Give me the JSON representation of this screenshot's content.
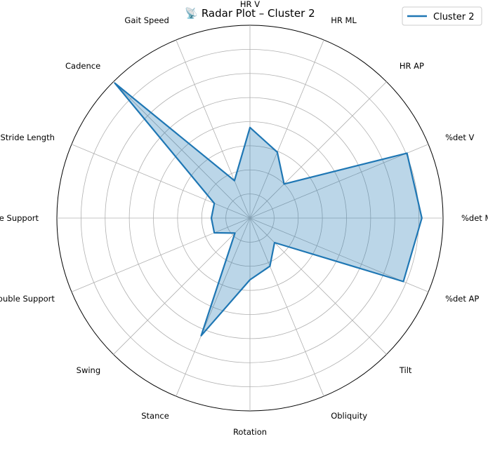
{
  "chart_data": {
    "type": "radar",
    "title": "📡 Radar Plot – Cluster 2",
    "legend": {
      "position": "top-right",
      "entries": [
        "Cluster 2"
      ]
    },
    "grid": true,
    "rlim": [
      0,
      1
    ],
    "rgrid_levels": 8,
    "axes": [
      "HR V",
      "HR ML",
      "HR AP",
      "%det V",
      "%det ML",
      "%det AP",
      "Tilt",
      "Obliquity",
      "Rotation",
      "Stance",
      "Swing",
      "Double Support",
      "Single Support",
      "Stride Length",
      "Cadence",
      "Gait Speed"
    ],
    "series": [
      {
        "name": "Cluster 2",
        "color": "#1f77b4",
        "fill_color": "#1f77b4",
        "values": [
          0.47,
          0.37,
          0.25,
          0.88,
          0.89,
          0.86,
          0.18,
          0.27,
          0.32,
          0.66,
          0.11,
          0.2,
          0.2,
          0.2,
          0.99,
          0.21
        ]
      }
    ]
  }
}
